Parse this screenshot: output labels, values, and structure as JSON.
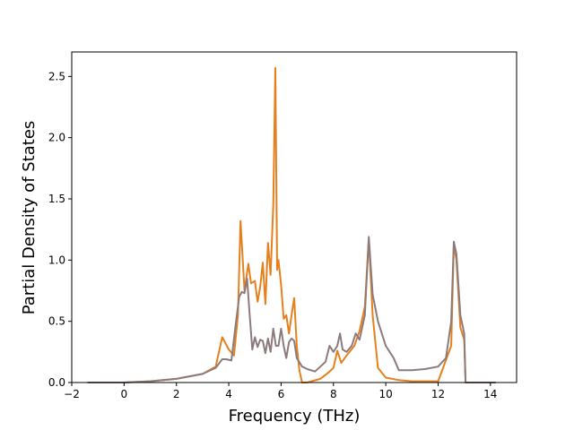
{
  "chart_data": {
    "type": "line",
    "title": "",
    "xlabel": "Frequency (THz)",
    "ylabel": "Partial Density of States",
    "xlim": [
      -2.0,
      15.0
    ],
    "ylim": [
      0.0,
      2.7
    ],
    "xticks": [
      -2,
      0,
      2,
      4,
      6,
      8,
      10,
      12,
      14
    ],
    "xtick_labels": [
      "−2",
      "0",
      "2",
      "4",
      "6",
      "8",
      "10",
      "12",
      "14"
    ],
    "yticks": [
      0.0,
      0.5,
      1.0,
      1.5,
      2.0,
      2.5
    ],
    "ytick_labels": [
      "0.0",
      "0.5",
      "1.0",
      "1.5",
      "2.0",
      "2.5"
    ],
    "grid": false,
    "legend": "none",
    "series": [
      {
        "color": "#e6801f",
        "x": [
          -1.4,
          0.0,
          1.0,
          2.0,
          3.0,
          3.5,
          3.75,
          3.85,
          4.0,
          4.2,
          4.35,
          4.45,
          4.6,
          4.75,
          4.85,
          5.0,
          5.1,
          5.2,
          5.3,
          5.4,
          5.5,
          5.6,
          5.7,
          5.78,
          5.85,
          5.9,
          6.0,
          6.1,
          6.2,
          6.3,
          6.4,
          6.5,
          6.6,
          6.7,
          6.8,
          7.0,
          7.5,
          7.8,
          8.0,
          8.15,
          8.3,
          8.5,
          8.8,
          9.0,
          9.2,
          9.35,
          9.5,
          9.7,
          10.0,
          10.5,
          11.0,
          12.0,
          12.5,
          12.6,
          12.7,
          12.85,
          13.0,
          13.05,
          14.2
        ],
        "y": [
          0.0,
          0.0,
          0.01,
          0.03,
          0.07,
          0.13,
          0.37,
          0.33,
          0.27,
          0.22,
          0.55,
          1.32,
          0.75,
          0.97,
          0.81,
          0.83,
          0.66,
          0.78,
          0.98,
          0.64,
          1.14,
          0.88,
          1.45,
          2.57,
          0.92,
          1.0,
          0.8,
          0.52,
          0.55,
          0.4,
          0.55,
          0.69,
          0.3,
          0.1,
          0.0,
          0.0,
          0.03,
          0.08,
          0.12,
          0.26,
          0.16,
          0.22,
          0.3,
          0.42,
          0.62,
          1.17,
          0.55,
          0.12,
          0.04,
          0.02,
          0.01,
          0.01,
          0.3,
          1.13,
          1.0,
          0.45,
          0.35,
          0.0,
          0.0
        ]
      },
      {
        "color": "#8c7b7d",
        "x": [
          -1.4,
          0.0,
          1.0,
          2.0,
          3.0,
          3.5,
          3.75,
          3.9,
          4.1,
          4.25,
          4.4,
          4.5,
          4.6,
          4.7,
          4.8,
          4.9,
          5.0,
          5.1,
          5.2,
          5.3,
          5.4,
          5.5,
          5.6,
          5.7,
          5.8,
          5.9,
          6.0,
          6.1,
          6.2,
          6.3,
          6.4,
          6.5,
          6.6,
          6.8,
          7.0,
          7.3,
          7.5,
          7.7,
          7.85,
          8.0,
          8.15,
          8.25,
          8.35,
          8.5,
          8.7,
          8.85,
          9.0,
          9.2,
          9.35,
          9.5,
          9.7,
          10.0,
          10.3,
          10.5,
          11.0,
          11.5,
          12.0,
          12.3,
          12.5,
          12.6,
          12.7,
          12.85,
          13.0,
          13.05,
          14.2
        ],
        "y": [
          0.0,
          0.0,
          0.01,
          0.03,
          0.07,
          0.12,
          0.19,
          0.19,
          0.18,
          0.45,
          0.7,
          0.74,
          0.73,
          0.85,
          0.55,
          0.27,
          0.37,
          0.29,
          0.35,
          0.34,
          0.24,
          0.36,
          0.25,
          0.44,
          0.3,
          0.3,
          0.44,
          0.3,
          0.2,
          0.33,
          0.36,
          0.34,
          0.2,
          0.13,
          0.11,
          0.09,
          0.13,
          0.17,
          0.3,
          0.25,
          0.3,
          0.4,
          0.27,
          0.25,
          0.3,
          0.4,
          0.35,
          0.55,
          1.19,
          0.72,
          0.5,
          0.3,
          0.2,
          0.1,
          0.1,
          0.11,
          0.13,
          0.2,
          0.5,
          1.15,
          1.05,
          0.55,
          0.4,
          0.0,
          0.0
        ]
      }
    ]
  }
}
